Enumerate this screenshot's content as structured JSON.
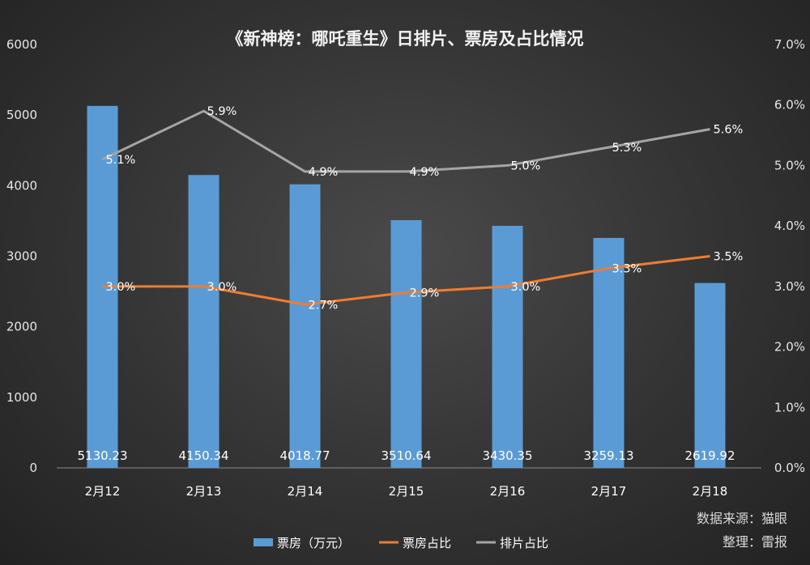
{
  "chart_data": {
    "type": "bar",
    "title": "《新神榜：哪吒重生》日排片、票房及占比情况",
    "categories": [
      "2月12",
      "2月13",
      "2月14",
      "2月15",
      "2月16",
      "2月17",
      "2月18"
    ],
    "series": [
      {
        "name": "票房（万元）",
        "type": "bar",
        "axis": "left",
        "color": "#5b9bd5",
        "values": [
          5130.23,
          4150.34,
          4018.77,
          3510.64,
          3430.35,
          3259.13,
          2619.92
        ],
        "labels": [
          "5130.23",
          "4150.34",
          "4018.77",
          "3510.64",
          "3430.35",
          "3259.13",
          "2619.92"
        ]
      },
      {
        "name": "票房占比",
        "type": "line",
        "axis": "right",
        "color": "#ed7d31",
        "values": [
          3.0,
          3.0,
          2.7,
          2.9,
          3.0,
          3.3,
          3.5
        ],
        "labels": [
          "3.0%",
          "3.0%",
          "2.7%",
          "2.9%",
          "3.0%",
          "3.3%",
          "3.5%"
        ]
      },
      {
        "name": "排片占比",
        "type": "line",
        "axis": "right",
        "color": "#a5a5a5",
        "values": [
          5.1,
          5.9,
          4.9,
          4.9,
          5.0,
          5.3,
          5.6
        ],
        "labels": [
          "5.1%",
          "5.9%",
          "4.9%",
          "4.9%",
          "5.0%",
          "5.3%",
          "5.6%"
        ]
      }
    ],
    "y_left": {
      "min": 0,
      "max": 6000,
      "ticks": [
        "0",
        "1000",
        "2000",
        "3000",
        "4000",
        "5000",
        "6000"
      ]
    },
    "y_right": {
      "min": 0,
      "max": 7,
      "ticks": [
        "0.0%",
        "1.0%",
        "2.0%",
        "3.0%",
        "4.0%",
        "5.0%",
        "6.0%",
        "7.0%"
      ]
    },
    "grid": false,
    "legend": "bottom"
  },
  "source": {
    "line1": "数据来源：猫眼",
    "line2": "整理：雷报"
  }
}
